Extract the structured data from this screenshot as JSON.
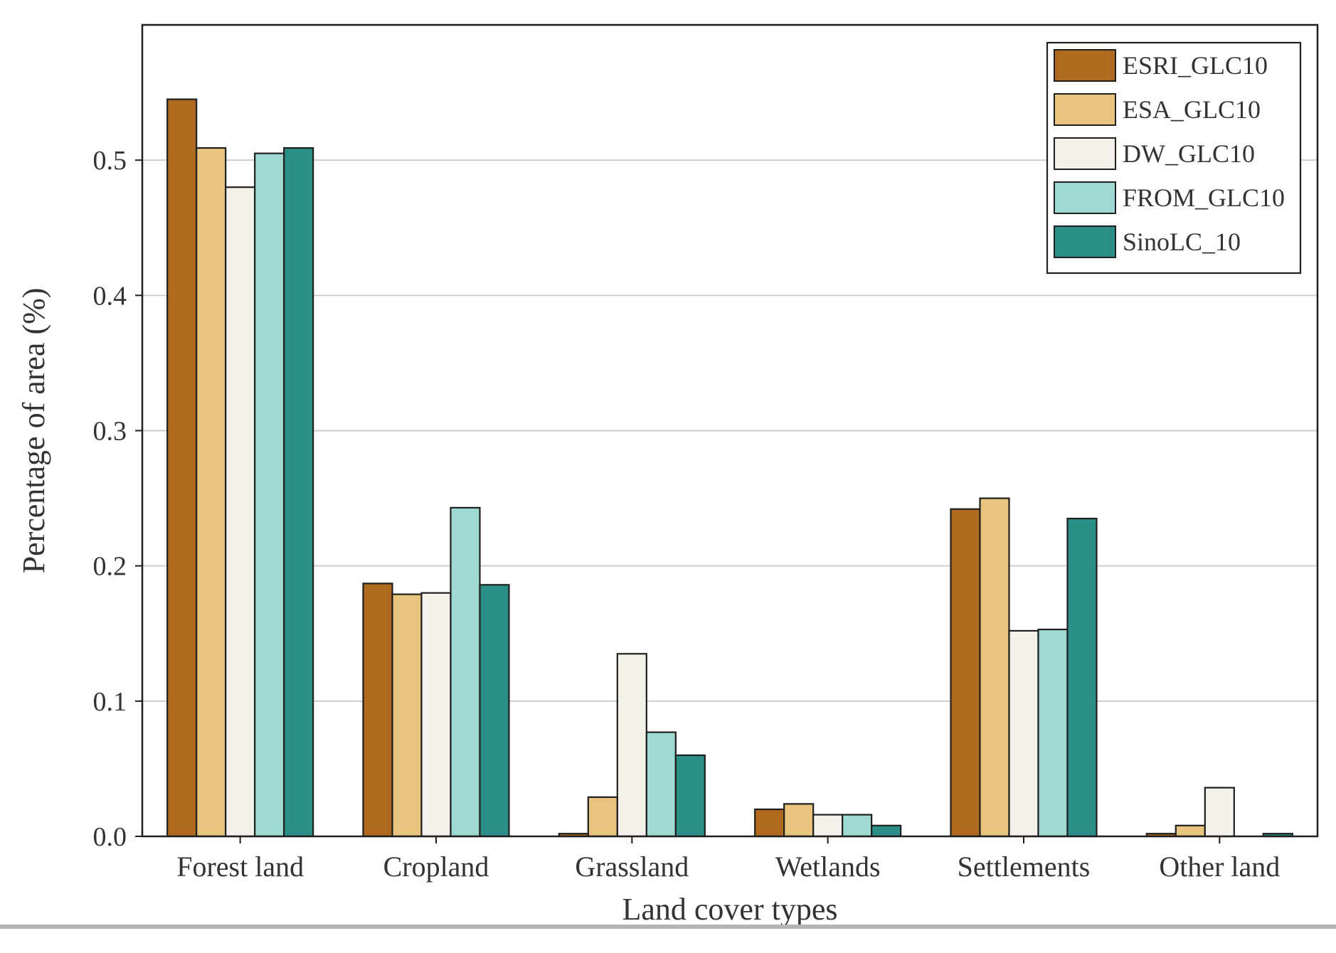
{
  "chart_data": {
    "type": "bar",
    "title": "",
    "xlabel": "Land cover types",
    "ylabel": "Percentage of area (%)",
    "ylim": [
      0,
      0.6
    ],
    "yticks": [
      0.0,
      0.1,
      0.2,
      0.3,
      0.4,
      0.5
    ],
    "ytick_labels": [
      "0.0",
      "0.1",
      "0.2",
      "0.3",
      "0.4",
      "0.5"
    ],
    "grid": "horizontal",
    "legend_position": "top-right",
    "categories": [
      "Forest land",
      "Cropland",
      "Grassland",
      "Wetlands",
      "Settlements",
      "Other land"
    ],
    "series": [
      {
        "name": "ESRI_GLC10",
        "color": "#b06a1f",
        "values": [
          0.545,
          0.187,
          0.002,
          0.02,
          0.242,
          0.002
        ]
      },
      {
        "name": "ESA_GLC10",
        "color": "#e8c47e",
        "values": [
          0.509,
          0.179,
          0.029,
          0.024,
          0.25,
          0.008
        ]
      },
      {
        "name": "DW_GLC10",
        "color": "#f3f1ea",
        "values": [
          0.48,
          0.18,
          0.135,
          0.016,
          0.152,
          0.036
        ]
      },
      {
        "name": "FROM_GLC10",
        "color": "#9fd9d3",
        "values": [
          0.505,
          0.243,
          0.077,
          0.016,
          0.153,
          0.0
        ]
      },
      {
        "name": "SinoLC_10",
        "color": "#2b8f88",
        "values": [
          0.509,
          0.186,
          0.06,
          0.008,
          0.235,
          0.002
        ]
      }
    ]
  }
}
